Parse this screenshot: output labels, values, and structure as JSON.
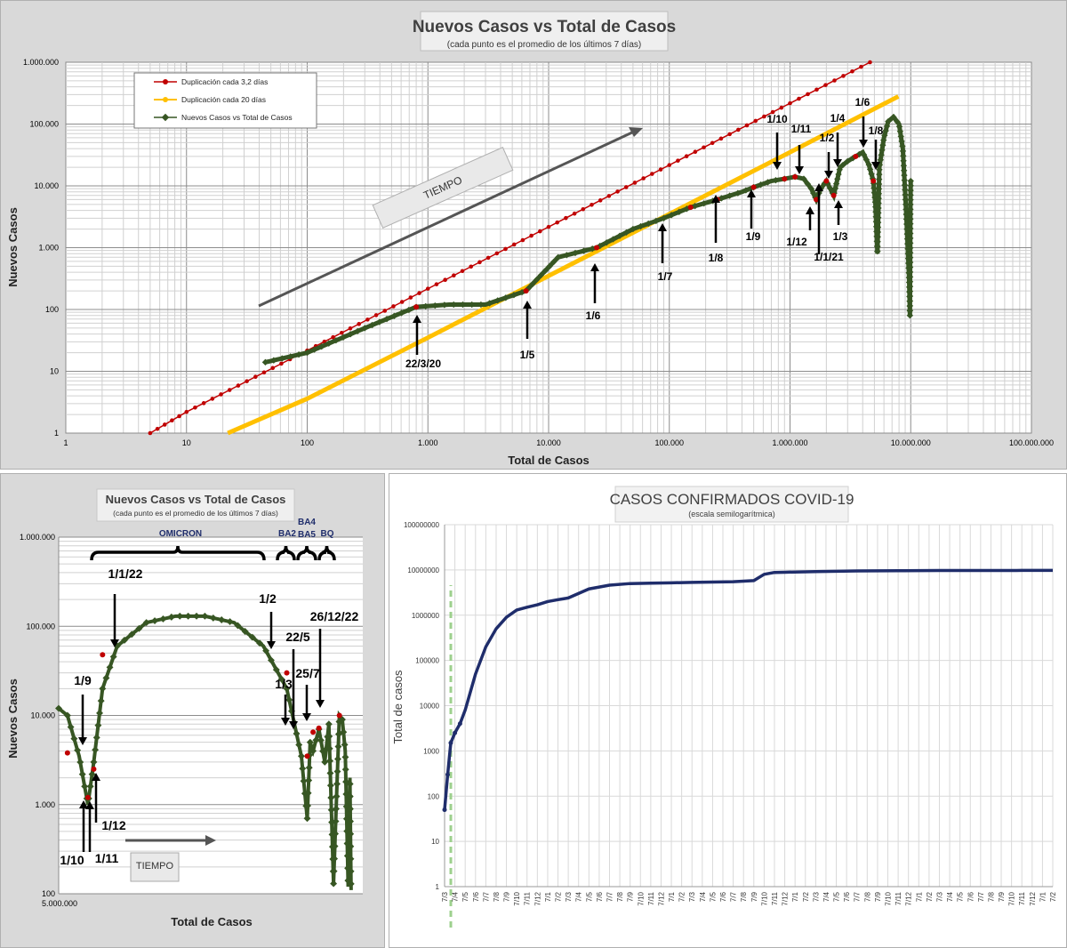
{
  "chart_data": [
    {
      "type": "scatter",
      "title": "Nuevos Casos vs Total de Casos",
      "subtitle": "(cada punto  es el promedio  de los últimos  7 días)",
      "xlabel": "Total de Casos",
      "ylabel": "Nuevos Casos",
      "x_scale": "log",
      "y_scale": "log",
      "xlim": [
        1,
        100000000
      ],
      "ylim": [
        1,
        1000000
      ],
      "x_ticks": [
        "1",
        "10",
        "100",
        "1.000",
        "10.000",
        "100.000",
        "1.000.000",
        "10.000.000",
        "100.000.000"
      ],
      "y_ticks": [
        "1",
        "10",
        "100",
        "1.000",
        "10.000",
        "100.000",
        "1.000.000"
      ],
      "legend_position": "top-left",
      "series": [
        {
          "name": "Duplicación cada 3,2 días",
          "color": "#c00000",
          "x": [
            5,
            10,
            100,
            1000,
            10000,
            100000,
            1000000,
            4600000
          ],
          "y": [
            1,
            2.2,
            21.7,
            217,
            2170,
            21700,
            217000,
            1000000
          ]
        },
        {
          "name": "Duplicación cada 20 días",
          "color": "#ffc000",
          "x": [
            22,
            100,
            1000,
            10000,
            100000,
            1000000,
            7900000
          ],
          "y": [
            1,
            3.6,
            35,
            350,
            3500,
            35000,
            280000
          ]
        },
        {
          "name": "Nuevos Casos vs Total de Casos",
          "color": "#375623",
          "x": [
            45,
            100,
            300,
            800,
            1500,
            3000,
            6500,
            12000,
            25000,
            50000,
            90000,
            150000,
            250000,
            400000,
            500000,
            700000,
            900000,
            1100000,
            1300000,
            1500000,
            1650000,
            1800000,
            2000000,
            2300000,
            2600000,
            3000000,
            3500000,
            4000000,
            4500000,
            4900000,
            5100000,
            5300000,
            5500000,
            6000000,
            6500000,
            7200000,
            8000000,
            8600000,
            9100000,
            9500000,
            9700000,
            9850000,
            9950000,
            10000000
          ],
          "y": [
            14,
            20,
            50,
            110,
            120,
            120,
            200,
            700,
            1000,
            2000,
            3000,
            4500,
            6000,
            8000,
            9500,
            12000,
            13000,
            14000,
            13000,
            9000,
            6000,
            9000,
            12000,
            7000,
            20000,
            25000,
            30000,
            35000,
            22000,
            12000,
            5000,
            800,
            20000,
            60000,
            110000,
            130000,
            100000,
            40000,
            5000,
            800,
            300,
            80,
            5000,
            12000
          ]
        }
      ],
      "annotations": [
        "22/3/20",
        "1/5",
        "1/6",
        "1/7",
        "1/8",
        "1/9",
        "1/10",
        "1/11",
        "1/12",
        "1/1/21",
        "1/2",
        "1/3",
        "1/4",
        "1/6",
        "1/8"
      ],
      "arrow_label": "TIEMPO"
    },
    {
      "type": "scatter",
      "title": "Nuevos Casos vs Total de Casos",
      "subtitle": "(cada punto es el promedio de los últimos 7 días)",
      "xlabel": "Total de Casos",
      "ylabel": "Nuevos Casos",
      "y_scale": "log",
      "ylim": [
        100,
        1000000
      ],
      "x_tick": "5.000.000",
      "y_ticks": [
        "100",
        "1.000",
        "10.000",
        "100.000",
        "1.000.000"
      ],
      "series": [
        {
          "name": "Nuevos Casos vs Total de Casos",
          "color": "#375623",
          "x": [
            5.0,
            5.15,
            5.35,
            5.5,
            5.6,
            5.75,
            6.0,
            6.5,
            7.0,
            7.5,
            8.0,
            8.5,
            8.9,
            9.15,
            9.25,
            9.3,
            9.35,
            9.45,
            9.55,
            9.62,
            9.7,
            9.8,
            9.85,
            9.9,
            9.95,
            9.98,
            10.0
          ],
          "y": [
            12000,
            10000,
            3500,
            1000,
            3000,
            20000,
            60000,
            110000,
            130000,
            130000,
            110000,
            60000,
            20000,
            3500,
            700,
            5000,
            4000,
            7000,
            3000,
            8000,
            130,
            10000,
            9000,
            4000,
            120,
            2000,
            110
          ]
        }
      ],
      "group_labels": [
        "OMICRON",
        "BA2",
        "BA4",
        "BA5",
        "BQ"
      ],
      "annotations": [
        "1/1/22",
        "1/9",
        "1/10",
        "1/11",
        "1/12",
        "1/2",
        "1/3",
        "22/5",
        "25/7",
        "26/12/22"
      ],
      "arrow_label": "TIEMPO"
    },
    {
      "type": "line",
      "title": "CASOS CONFIRMADOS COVID-19",
      "subtitle": "(escala semilogarítmica)",
      "ylabel": "Total de casos",
      "y_scale": "log",
      "ylim": [
        1,
        100000000
      ],
      "y_ticks": [
        "1",
        "10",
        "100",
        "1000",
        "10000",
        "100000",
        "1000000",
        "10000000",
        "100000000"
      ],
      "x_ticks": [
        "7/3",
        "7/4",
        "7/5",
        "7/6",
        "7/7",
        "7/8",
        "7/9",
        "7/10",
        "7/11",
        "7/12",
        "7/1",
        "7/2",
        "7/3",
        "7/4",
        "7/5",
        "7/6",
        "7/7",
        "7/8",
        "7/9",
        "7/10",
        "7/11",
        "7/12",
        "7/1",
        "7/2",
        "7/3",
        "7/4",
        "7/5",
        "7/6",
        "7/7",
        "7/8",
        "7/9",
        "7/10",
        "7/11",
        "7/12",
        "7/1",
        "7/2",
        "7/3",
        "7/4",
        "7/5",
        "7/6",
        "7/7",
        "7/8",
        "7/9",
        "7/10",
        "7/11",
        "7/12",
        "7/1",
        "7/2",
        "7/3",
        "7/4",
        "7/5",
        "7/6",
        "7/7",
        "7/8",
        "7/9",
        "7/10",
        "7/11",
        "7/12",
        "7/1",
        "7/2"
      ],
      "series": [
        {
          "name": "",
          "color": "#1f2d6b",
          "x": [
            0,
            0.3,
            0.6,
            1,
            1.5,
            2,
            3,
            4,
            5,
            6,
            7,
            8,
            9,
            10,
            11,
            12,
            14,
            16,
            18,
            20,
            22,
            24,
            26,
            28,
            30,
            31,
            32,
            33,
            34,
            36,
            40,
            44,
            48,
            52,
            56,
            59
          ],
          "y": [
            50,
            300,
            1500,
            2500,
            4000,
            8000,
            50000,
            200000,
            500000,
            900000,
            1300000,
            1500000,
            1700000,
            2000000,
            2200000,
            2400000,
            3800000,
            4600000,
            5000000,
            5100000,
            5200000,
            5300000,
            5400000,
            5500000,
            5800000,
            8000000,
            8800000,
            8900000,
            9000000,
            9200000,
            9500000,
            9600000,
            9700000,
            9700000,
            9750000,
            9800000
          ]
        }
      ]
    }
  ]
}
